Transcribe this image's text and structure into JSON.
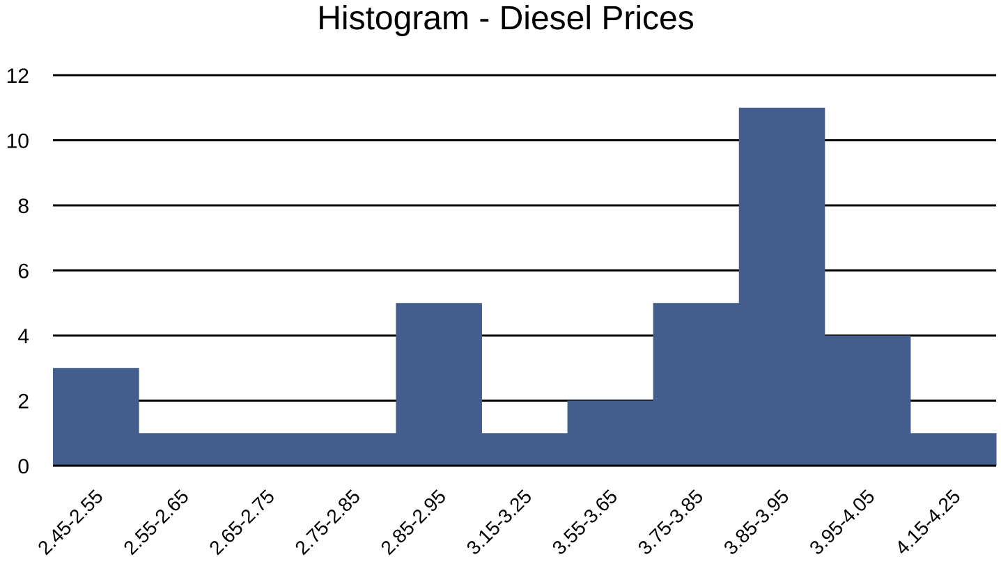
{
  "chart_data": {
    "type": "bar",
    "title": "Histogram - Diesel Prices",
    "xlabel": "",
    "ylabel": "",
    "categories": [
      "2.45-2.55",
      "2.55-2.65",
      "2.65-2.75",
      "2.75-2.85",
      "2.85-2.95",
      "3.15-3.25",
      "3.55-3.65",
      "3.75-3.85",
      "3.85-3.95",
      "3.95-4.05",
      "4.15-4.25"
    ],
    "values": [
      3,
      1,
      1,
      1,
      5,
      1,
      2,
      5,
      11,
      4,
      1
    ],
    "ylim": [
      0,
      12
    ],
    "yticks": [
      0,
      2,
      4,
      6,
      8,
      10,
      12
    ],
    "grid": true,
    "legend": "none",
    "colors": {
      "bar": "#435E8C",
      "gridline": "#000000",
      "text": "#000000"
    }
  }
}
